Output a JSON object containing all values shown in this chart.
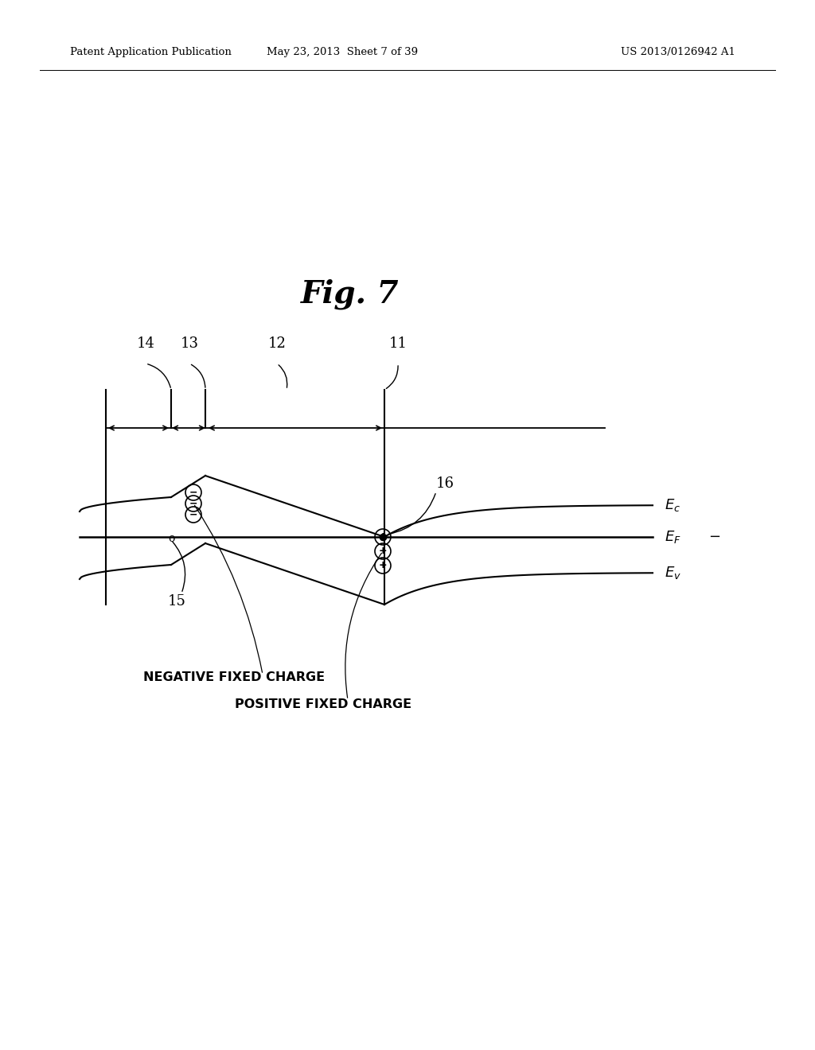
{
  "bg_color": "#ffffff",
  "header_left": "Patent Application Publication",
  "header_mid": "May 23, 2013  Sheet 7 of 39",
  "header_right": "US 2013/0126942 A1",
  "fig_title": "Fig. 7",
  "neg_charge_label": "NEGATIVE FIXED CHARGE",
  "pos_charge_label": "POSITIVE FIXED CHARGE",
  "label_14": "14",
  "label_13": "13",
  "label_12": "12",
  "label_11": "11",
  "label_15": "15",
  "label_16": "16"
}
